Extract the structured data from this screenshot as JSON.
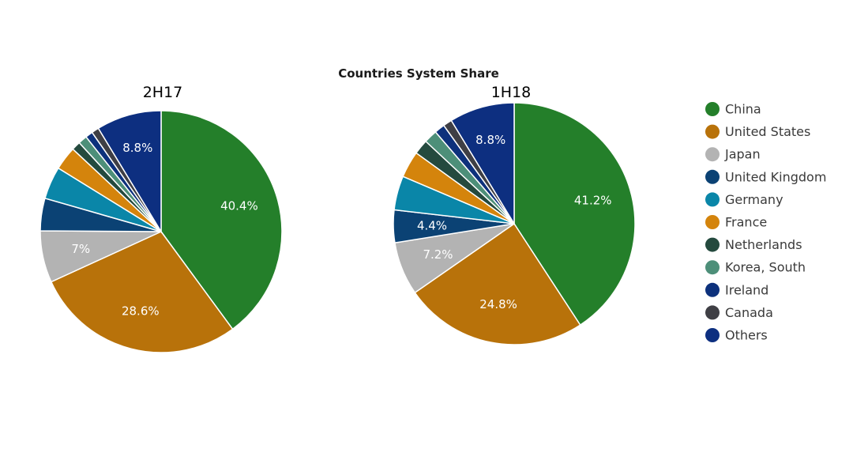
{
  "chart_data": {
    "type": "pie",
    "title": "Countries System Share",
    "legend": {
      "placement": "right",
      "entries": [
        {
          "label": "China",
          "color": "#247f2a"
        },
        {
          "label": "United States",
          "color": "#b8720a"
        },
        {
          "label": "Japan",
          "color": "#b3b3b3"
        },
        {
          "label": "United Kingdom",
          "color": "#0b4274"
        },
        {
          "label": "Germany",
          "color": "#0a86a8"
        },
        {
          "label": "France",
          "color": "#d4840c"
        },
        {
          "label": "Netherlands",
          "color": "#244a3e"
        },
        {
          "label": "Korea, South",
          "color": "#4d8f79"
        },
        {
          "label": "Ireland",
          "color": "#0d317c"
        },
        {
          "label": "Canada",
          "color": "#3f3f45"
        },
        {
          "label": "Others",
          "color": "#0d2f80"
        }
      ]
    },
    "pies": [
      {
        "title": "2H17",
        "values": [
          40.4,
          28.6,
          7,
          4.4,
          4.4,
          3.2,
          1.2,
          1.2,
          1.0,
          1.0,
          8.8
        ],
        "labels": [
          "40.4%",
          "28.6%",
          "7%",
          "",
          "",
          "",
          "",
          "",
          "",
          "",
          "8.8%"
        ]
      },
      {
        "title": "1H18",
        "values": [
          41.2,
          24.8,
          7.2,
          4.4,
          4.6,
          3.6,
          2.0,
          1.8,
          1.4,
          1.2,
          8.8
        ],
        "labels": [
          "41.2%",
          "24.8%",
          "7.2%",
          "4.4%",
          "",
          "",
          "",
          "",
          "",
          "",
          "8.8%"
        ]
      }
    ]
  }
}
